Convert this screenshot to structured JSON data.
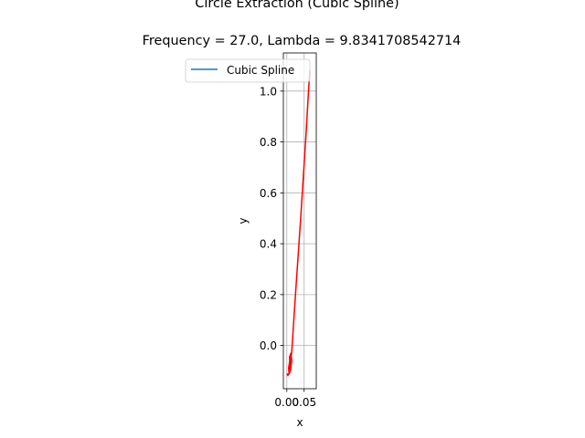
{
  "chart_data": {
    "type": "line",
    "title": "Circle Extraction (Cubic Spline)",
    "subtitle": "Frequency = 27.0, Lambda = 9.8341708542714",
    "xlabel": "x",
    "ylabel": "y",
    "xlim": [
      -0.01,
      0.085
    ],
    "ylim": [
      -0.17,
      1.15
    ],
    "x_ticks": [
      0.0,
      0.05
    ],
    "x_tick_labels": [
      "0.00",
      "0.05"
    ],
    "y_ticks": [
      0.0,
      0.2,
      0.4,
      0.6,
      0.8,
      1.0
    ],
    "y_tick_labels": [
      "0.0",
      "0.2",
      "0.4",
      "0.6",
      "0.8",
      "1.0"
    ],
    "grid": true,
    "legend": {
      "position": "upper-left",
      "entries": [
        {
          "label": "Cubic Spline",
          "color": "#1f77b4"
        }
      ]
    },
    "series": [
      {
        "name": "Cubic Spline",
        "color": "#1f77b4",
        "points": []
      },
      {
        "color": "#ff0000",
        "points": [
          [
            0.0,
            -0.11
          ],
          [
            0.003,
            -0.118
          ],
          [
            0.006,
            -0.11
          ],
          [
            0.009,
            -0.08
          ],
          [
            0.008,
            -0.045
          ],
          [
            0.012,
            -0.03
          ],
          [
            0.014,
            -0.06
          ],
          [
            0.011,
            -0.095
          ],
          [
            0.007,
            -0.112
          ],
          [
            0.005,
            -0.09
          ],
          [
            0.009,
            -0.055
          ],
          [
            0.013,
            -0.04
          ],
          [
            0.01,
            -0.07
          ],
          [
            0.012,
            -0.045
          ],
          [
            0.014,
            -0.03
          ],
          [
            0.025,
            0.2
          ],
          [
            0.04,
            0.5
          ],
          [
            0.055,
            0.82
          ],
          [
            0.066,
            1.08
          ]
        ]
      }
    ]
  }
}
